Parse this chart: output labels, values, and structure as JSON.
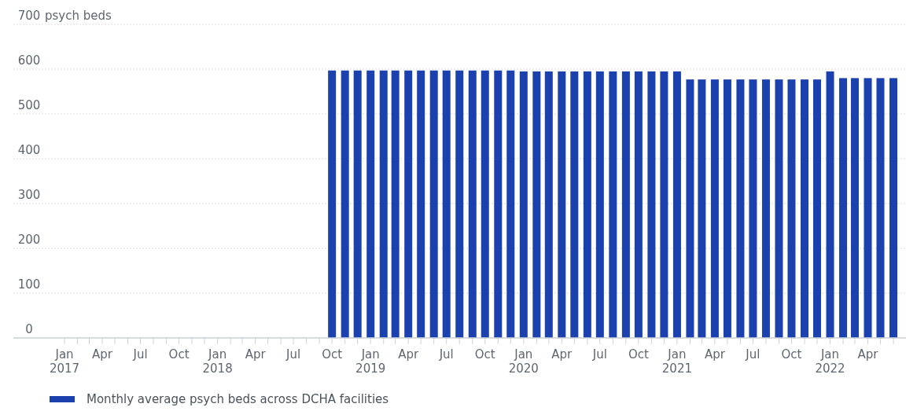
{
  "chart_data": {
    "type": "bar",
    "ylabel": "psych beds",
    "x": [
      "2018-10",
      "2018-11",
      "2018-12",
      "2019-01",
      "2019-02",
      "2019-03",
      "2019-04",
      "2019-05",
      "2019-06",
      "2019-07",
      "2019-08",
      "2019-09",
      "2019-10",
      "2019-11",
      "2019-12",
      "2020-01",
      "2020-02",
      "2020-03",
      "2020-04",
      "2020-05",
      "2020-06",
      "2020-07",
      "2020-08",
      "2020-09",
      "2020-10",
      "2020-11",
      "2020-12",
      "2021-01",
      "2021-02",
      "2021-03",
      "2021-04",
      "2021-05",
      "2021-06",
      "2021-07",
      "2021-08",
      "2021-09",
      "2021-10",
      "2021-11",
      "2021-12",
      "2022-01",
      "2022-02",
      "2022-03",
      "2022-04",
      "2022-05",
      "2022-06"
    ],
    "series": [
      {
        "name": "Monthly average psych beds across DCHA facilities",
        "color": "#1a41ae",
        "values": [
          597,
          597,
          597,
          597,
          597,
          597,
          597,
          597,
          597,
          597,
          597,
          597,
          597,
          597,
          597,
          595,
          595,
          595,
          595,
          595,
          595,
          595,
          595,
          595,
          595,
          595,
          595,
          595,
          577,
          577,
          577,
          577,
          577,
          577,
          577,
          577,
          577,
          577,
          577,
          595,
          580,
          580,
          580,
          580,
          580
        ]
      }
    ],
    "xlim": [
      "2016-09",
      "2022-07"
    ],
    "xticks": [
      {
        "value": "2017-01",
        "label": "Jan 2017"
      },
      {
        "value": "2017-02",
        "label": null
      },
      {
        "value": "2017-03",
        "label": null
      },
      {
        "value": "2017-04",
        "label": "Apr"
      },
      {
        "value": "2017-05",
        "label": null
      },
      {
        "value": "2017-06",
        "label": null
      },
      {
        "value": "2017-07",
        "label": "Jul"
      },
      {
        "value": "2017-08",
        "label": null
      },
      {
        "value": "2017-09",
        "label": null
      },
      {
        "value": "2017-10",
        "label": "Oct"
      },
      {
        "value": "2017-11",
        "label": null
      },
      {
        "value": "2017-12",
        "label": null
      },
      {
        "value": "2018-01",
        "label": "Jan 2018"
      },
      {
        "value": "2018-02",
        "label": null
      },
      {
        "value": "2018-03",
        "label": null
      },
      {
        "value": "2018-04",
        "label": "Apr"
      },
      {
        "value": "2018-05",
        "label": null
      },
      {
        "value": "2018-06",
        "label": null
      },
      {
        "value": "2018-07",
        "label": "Jul"
      },
      {
        "value": "2018-08",
        "label": null
      },
      {
        "value": "2018-09",
        "label": null
      },
      {
        "value": "2018-10",
        "label": "Oct"
      },
      {
        "value": "2018-11",
        "label": null
      },
      {
        "value": "2018-12",
        "label": null
      },
      {
        "value": "2019-01",
        "label": "Jan 2019"
      },
      {
        "value": "2019-02",
        "label": null
      },
      {
        "value": "2019-03",
        "label": null
      },
      {
        "value": "2019-04",
        "label": "Apr"
      },
      {
        "value": "2019-05",
        "label": null
      },
      {
        "value": "2019-06",
        "label": null
      },
      {
        "value": "2019-07",
        "label": "Jul"
      },
      {
        "value": "2019-08",
        "label": null
      },
      {
        "value": "2019-09",
        "label": null
      },
      {
        "value": "2019-10",
        "label": "Oct"
      },
      {
        "value": "2019-11",
        "label": null
      },
      {
        "value": "2019-12",
        "label": null
      },
      {
        "value": "2020-01",
        "label": "Jan 2020"
      },
      {
        "value": "2020-02",
        "label": null
      },
      {
        "value": "2020-03",
        "label": null
      },
      {
        "value": "2020-04",
        "label": "Apr"
      },
      {
        "value": "2020-05",
        "label": null
      },
      {
        "value": "2020-06",
        "label": null
      },
      {
        "value": "2020-07",
        "label": "Jul"
      },
      {
        "value": "2020-08",
        "label": null
      },
      {
        "value": "2020-09",
        "label": null
      },
      {
        "value": "2020-10",
        "label": "Oct"
      },
      {
        "value": "2020-11",
        "label": null
      },
      {
        "value": "2020-12",
        "label": null
      },
      {
        "value": "2021-01",
        "label": "Jan 2021"
      },
      {
        "value": "2021-02",
        "label": null
      },
      {
        "value": "2021-03",
        "label": null
      },
      {
        "value": "2021-04",
        "label": "Apr"
      },
      {
        "value": "2021-05",
        "label": null
      },
      {
        "value": "2021-06",
        "label": null
      },
      {
        "value": "2021-07",
        "label": "Jul"
      },
      {
        "value": "2021-08",
        "label": null
      },
      {
        "value": "2021-09",
        "label": null
      },
      {
        "value": "2021-10",
        "label": "Oct"
      },
      {
        "value": "2021-11",
        "label": null
      },
      {
        "value": "2021-12",
        "label": null
      },
      {
        "value": "2022-01",
        "label": "Jan 2022"
      },
      {
        "value": "2022-02",
        "label": null
      },
      {
        "value": "2022-03",
        "label": null
      },
      {
        "value": "2022-04",
        "label": "Apr"
      },
      {
        "value": "2022-05",
        "label": null
      },
      {
        "value": "2022-06",
        "label": null
      }
    ],
    "ylim": [
      0,
      700
    ],
    "yticks": [
      0,
      100,
      200,
      300,
      400,
      500,
      600,
      700
    ],
    "grid": "y",
    "legend": "bottom"
  }
}
